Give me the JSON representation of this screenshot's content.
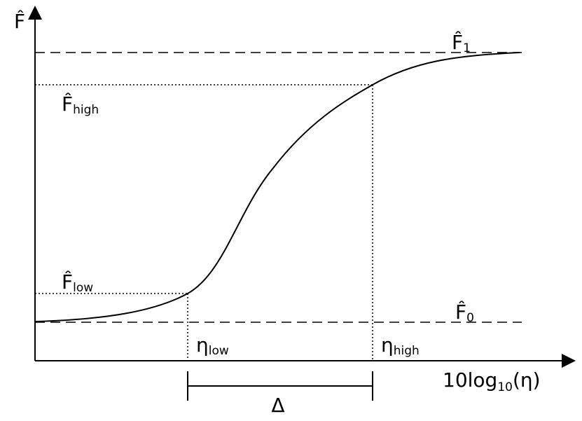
{
  "y_axis_label": "F̂",
  "x_axis_label": {
    "main": "10log",
    "sub": "10",
    "tail": "(η)"
  },
  "levels": [
    {
      "main": "F̂",
      "sub": "1"
    },
    {
      "main": "F̂",
      "sub": "high"
    },
    {
      "main": "F̂",
      "sub": "low"
    },
    {
      "main": "F̂",
      "sub": "0"
    }
  ],
  "thresholds": [
    {
      "main": "η",
      "sub": "low"
    },
    {
      "main": "η",
      "sub": "high"
    }
  ],
  "interval": "Δ"
}
